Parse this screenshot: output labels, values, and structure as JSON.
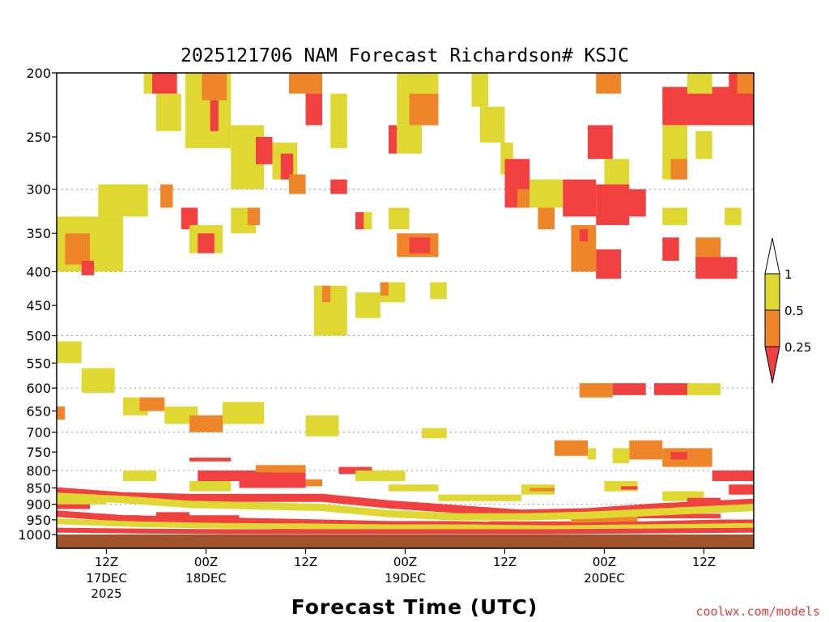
{
  "chart_data": {
    "type": "heatmap",
    "title": "2025121706 NAM Forecast Richardson# KSJC",
    "xlabel": "Forecast Time (UTC)",
    "ylabel": "",
    "credit": "coolwx.com/models",
    "x_range_hours": [
      0,
      84
    ],
    "y_scale": "pressure",
    "y_range_hpa": [
      1000,
      200
    ],
    "y_ticks": [
      200,
      250,
      300,
      350,
      400,
      450,
      500,
      550,
      600,
      650,
      700,
      750,
      800,
      850,
      900,
      950,
      1000
    ],
    "y_gridlines": [
      300,
      400,
      500,
      600,
      700,
      800,
      900
    ],
    "x_ticks": [
      {
        "hour": 6,
        "label": "12Z",
        "sub": [
          "17DEC",
          "2025"
        ]
      },
      {
        "hour": 18,
        "label": "00Z",
        "sub": [
          "18DEC"
        ]
      },
      {
        "hour": 30,
        "label": "12Z",
        "sub": []
      },
      {
        "hour": 42,
        "label": "00Z",
        "sub": [
          "19DEC"
        ]
      },
      {
        "hour": 54,
        "label": "12Z",
        "sub": []
      },
      {
        "hour": 66,
        "label": "00Z",
        "sub": [
          "20DEC"
        ]
      },
      {
        "hour": 78,
        "label": "12Z",
        "sub": []
      }
    ],
    "legend": {
      "levels": [
        "1",
        "0.5",
        "0.25"
      ],
      "colors": {
        "gt1": "#ffffff",
        "b05_1": "#e0d832",
        "b025_05": "#ee8528",
        "lt025": "#f04040"
      }
    },
    "ground_color": "#a0522d",
    "cells": [
      {
        "x0": 0,
        "x1": 8,
        "p0": 330,
        "p1": 400,
        "c": "b05_1"
      },
      {
        "x0": 5,
        "x1": 11,
        "p0": 295,
        "p1": 330,
        "c": "b05_1"
      },
      {
        "x0": 1,
        "x1": 4,
        "p0": 350,
        "p1": 390,
        "c": "b025_05"
      },
      {
        "x0": 3,
        "x1": 4.5,
        "p0": 385,
        "p1": 405,
        "c": "lt025"
      },
      {
        "x0": 10.5,
        "x1": 11.5,
        "p0": 200,
        "p1": 215,
        "c": "b05_1"
      },
      {
        "x0": 11.5,
        "x1": 14.5,
        "p0": 200,
        "p1": 215,
        "c": "lt025"
      },
      {
        "x0": 12,
        "x1": 15,
        "p0": 215,
        "p1": 245,
        "c": "b05_1"
      },
      {
        "x0": 15.5,
        "x1": 21,
        "p0": 200,
        "p1": 260,
        "c": "b05_1"
      },
      {
        "x0": 17.5,
        "x1": 20.5,
        "p0": 200,
        "p1": 220,
        "c": "b025_05"
      },
      {
        "x0": 18.5,
        "x1": 19.5,
        "p0": 220,
        "p1": 245,
        "c": "lt025"
      },
      {
        "x0": 21,
        "x1": 25,
        "p0": 240,
        "p1": 300,
        "c": "b05_1"
      },
      {
        "x0": 24,
        "x1": 26,
        "p0": 250,
        "p1": 275,
        "c": "lt025"
      },
      {
        "x0": 26,
        "x1": 29,
        "p0": 255,
        "p1": 290,
        "c": "b05_1"
      },
      {
        "x0": 27,
        "x1": 28.5,
        "p0": 265,
        "p1": 290,
        "c": "lt025"
      },
      {
        "x0": 12.5,
        "x1": 14,
        "p0": 295,
        "p1": 320,
        "c": "b025_05"
      },
      {
        "x0": 15,
        "x1": 17,
        "p0": 320,
        "p1": 345,
        "c": "lt025"
      },
      {
        "x0": 16,
        "x1": 20,
        "p0": 340,
        "p1": 375,
        "c": "b05_1"
      },
      {
        "x0": 17,
        "x1": 19,
        "p0": 350,
        "p1": 375,
        "c": "lt025"
      },
      {
        "x0": 21,
        "x1": 24,
        "p0": 320,
        "p1": 350,
        "c": "b05_1"
      },
      {
        "x0": 23,
        "x1": 24.5,
        "p0": 320,
        "p1": 340,
        "c": "b025_05"
      },
      {
        "x0": 28,
        "x1": 32,
        "p0": 200,
        "p1": 215,
        "c": "b025_05"
      },
      {
        "x0": 30,
        "x1": 32,
        "p0": 215,
        "p1": 240,
        "c": "lt025"
      },
      {
        "x0": 33,
        "x1": 35,
        "p0": 215,
        "p1": 260,
        "c": "b05_1"
      },
      {
        "x0": 28,
        "x1": 30,
        "p0": 285,
        "p1": 305,
        "c": "b025_05"
      },
      {
        "x0": 33,
        "x1": 35,
        "p0": 290,
        "p1": 305,
        "c": "lt025"
      },
      {
        "x0": 36,
        "x1": 38,
        "p0": 325,
        "p1": 345,
        "c": "b05_1"
      },
      {
        "x0": 36,
        "x1": 37,
        "p0": 325,
        "p1": 345,
        "c": "lt025"
      },
      {
        "x0": 40,
        "x1": 42.5,
        "p0": 320,
        "p1": 345,
        "c": "b05_1"
      },
      {
        "x0": 41,
        "x1": 46,
        "p0": 350,
        "p1": 380,
        "c": "b025_05"
      },
      {
        "x0": 42.5,
        "x1": 45,
        "p0": 355,
        "p1": 375,
        "c": "lt025"
      },
      {
        "x0": 41,
        "x1": 46,
        "p0": 200,
        "p1": 240,
        "c": "b05_1"
      },
      {
        "x0": 42.5,
        "x1": 46,
        "p0": 215,
        "p1": 240,
        "c": "b025_05"
      },
      {
        "x0": 40,
        "x1": 41,
        "p0": 240,
        "p1": 265,
        "c": "lt025"
      },
      {
        "x0": 41,
        "x1": 44,
        "p0": 240,
        "p1": 265,
        "c": "b05_1"
      },
      {
        "x0": 31,
        "x1": 35,
        "p0": 420,
        "p1": 500,
        "c": "b05_1"
      },
      {
        "x0": 32,
        "x1": 33,
        "p0": 420,
        "p1": 445,
        "c": "b025_05"
      },
      {
        "x0": 36,
        "x1": 39,
        "p0": 430,
        "p1": 470,
        "c": "b05_1"
      },
      {
        "x0": 39,
        "x1": 42,
        "p0": 415,
        "p1": 445,
        "c": "b05_1"
      },
      {
        "x0": 39,
        "x1": 40,
        "p0": 415,
        "p1": 435,
        "c": "b025_05"
      },
      {
        "x0": 45,
        "x1": 47,
        "p0": 415,
        "p1": 440,
        "c": "b05_1"
      },
      {
        "x0": 50,
        "x1": 52,
        "p0": 200,
        "p1": 225,
        "c": "b05_1"
      },
      {
        "x0": 51,
        "x1": 54,
        "p0": 225,
        "p1": 255,
        "c": "b05_1"
      },
      {
        "x0": 53.5,
        "x1": 55,
        "p0": 255,
        "p1": 285,
        "c": "b05_1"
      },
      {
        "x0": 54,
        "x1": 57,
        "p0": 270,
        "p1": 320,
        "c": "lt025"
      },
      {
        "x0": 55.5,
        "x1": 57,
        "p0": 300,
        "p1": 320,
        "c": "b025_05"
      },
      {
        "x0": 57,
        "x1": 61,
        "p0": 290,
        "p1": 320,
        "c": "b05_1"
      },
      {
        "x0": 58,
        "x1": 60,
        "p0": 320,
        "p1": 345,
        "c": "b025_05"
      },
      {
        "x0": 61,
        "x1": 65,
        "p0": 290,
        "p1": 330,
        "c": "lt025"
      },
      {
        "x0": 64,
        "x1": 67,
        "p0": 240,
        "p1": 270,
        "c": "lt025"
      },
      {
        "x0": 65,
        "x1": 68,
        "p0": 200,
        "p1": 215,
        "c": "b025_05"
      },
      {
        "x0": 66,
        "x1": 69,
        "p0": 270,
        "p1": 300,
        "c": "b05_1"
      },
      {
        "x0": 65,
        "x1": 69,
        "p0": 295,
        "p1": 340,
        "c": "lt025"
      },
      {
        "x0": 67,
        "x1": 71,
        "p0": 300,
        "p1": 330,
        "c": "lt025"
      },
      {
        "x0": 62,
        "x1": 65,
        "p0": 340,
        "p1": 400,
        "c": "b025_05"
      },
      {
        "x0": 65,
        "x1": 68,
        "p0": 370,
        "p1": 410,
        "c": "lt025"
      },
      {
        "x0": 63,
        "x1": 64,
        "p0": 345,
        "p1": 360,
        "c": "lt025"
      },
      {
        "x0": 73,
        "x1": 84,
        "p0": 210,
        "p1": 240,
        "c": "lt025"
      },
      {
        "x0": 73,
        "x1": 76,
        "p0": 240,
        "p1": 290,
        "c": "b05_1"
      },
      {
        "x0": 74,
        "x1": 76,
        "p0": 270,
        "p1": 290,
        "c": "b025_05"
      },
      {
        "x0": 76,
        "x1": 79,
        "p0": 200,
        "p1": 215,
        "c": "b05_1"
      },
      {
        "x0": 77,
        "x1": 79,
        "p0": 245,
        "p1": 270,
        "c": "b05_1"
      },
      {
        "x0": 81,
        "x1": 82,
        "p0": 200,
        "p1": 215,
        "c": "lt025"
      },
      {
        "x0": 82,
        "x1": 84,
        "p0": 200,
        "p1": 215,
        "c": "b025_05"
      },
      {
        "x0": 73,
        "x1": 75,
        "p0": 355,
        "p1": 385,
        "c": "lt025"
      },
      {
        "x0": 77,
        "x1": 80,
        "p0": 355,
        "p1": 400,
        "c": "b025_05"
      },
      {
        "x0": 77,
        "x1": 82,
        "p0": 380,
        "p1": 410,
        "c": "lt025"
      },
      {
        "x0": 73,
        "x1": 76,
        "p0": 320,
        "p1": 340,
        "c": "b05_1"
      },
      {
        "x0": 80.5,
        "x1": 82.5,
        "p0": 320,
        "p1": 340,
        "c": "b05_1"
      },
      {
        "x0": 0,
        "x1": 3,
        "p0": 510,
        "p1": 550,
        "c": "b05_1"
      },
      {
        "x0": 3,
        "x1": 7,
        "p0": 560,
        "p1": 610,
        "c": "b05_1"
      },
      {
        "x0": 8,
        "x1": 11,
        "p0": 620,
        "p1": 660,
        "c": "b05_1"
      },
      {
        "x0": 10,
        "x1": 13,
        "p0": 620,
        "p1": 650,
        "c": "b025_05"
      },
      {
        "x0": 13,
        "x1": 17,
        "p0": 640,
        "p1": 680,
        "c": "b05_1"
      },
      {
        "x0": 16,
        "x1": 20,
        "p0": 660,
        "p1": 700,
        "c": "b025_05"
      },
      {
        "x0": 20,
        "x1": 25,
        "p0": 630,
        "p1": 680,
        "c": "b05_1"
      },
      {
        "x0": 30,
        "x1": 34,
        "p0": 660,
        "p1": 710,
        "c": "b05_1"
      },
      {
        "x0": 44,
        "x1": 47,
        "p0": 690,
        "p1": 715,
        "c": "b05_1"
      },
      {
        "x0": 0,
        "x1": 1,
        "p0": 640,
        "p1": 670,
        "c": "b025_05"
      },
      {
        "x0": 63,
        "x1": 67,
        "p0": 590,
        "p1": 620,
        "c": "b025_05"
      },
      {
        "x0": 67,
        "x1": 71,
        "p0": 590,
        "p1": 615,
        "c": "lt025"
      },
      {
        "x0": 72,
        "x1": 76,
        "p0": 590,
        "p1": 615,
        "c": "lt025"
      },
      {
        "x0": 76,
        "x1": 80,
        "p0": 590,
        "p1": 615,
        "c": "b05_1"
      },
      {
        "x0": 60,
        "x1": 64,
        "p0": 720,
        "p1": 760,
        "c": "b025_05"
      },
      {
        "x0": 64,
        "x1": 65,
        "p0": 740,
        "p1": 770,
        "c": "b05_1"
      },
      {
        "x0": 69,
        "x1": 73,
        "p0": 720,
        "p1": 770,
        "c": "b025_05"
      },
      {
        "x0": 73,
        "x1": 79,
        "p0": 740,
        "p1": 790,
        "c": "b025_05"
      },
      {
        "x0": 74,
        "x1": 76,
        "p0": 750,
        "p1": 770,
        "c": "lt025"
      },
      {
        "x0": 67,
        "x1": 69,
        "p0": 740,
        "p1": 780,
        "c": "b05_1"
      },
      {
        "x0": 16,
        "x1": 21,
        "p0": 765,
        "p1": 775,
        "c": "lt025"
      },
      {
        "x0": 17,
        "x1": 26,
        "p0": 800,
        "p1": 830,
        "c": "lt025"
      },
      {
        "x0": 22,
        "x1": 30,
        "p0": 805,
        "p1": 850,
        "c": "lt025"
      },
      {
        "x0": 24,
        "x1": 30,
        "p0": 785,
        "p1": 805,
        "c": "b025_05"
      },
      {
        "x0": 30,
        "x1": 32,
        "p0": 825,
        "p1": 845,
        "c": "b025_05"
      },
      {
        "x0": 16,
        "x1": 21,
        "p0": 830,
        "p1": 860,
        "c": "b05_1"
      },
      {
        "x0": 0,
        "x1": 6,
        "p0": 865,
        "p1": 880,
        "c": "lt025"
      },
      {
        "x0": 0,
        "x1": 6,
        "p0": 880,
        "p1": 900,
        "c": "b05_1"
      },
      {
        "x0": 0,
        "x1": 4,
        "p0": 900,
        "p1": 915,
        "c": "lt025"
      },
      {
        "x0": 8,
        "x1": 12,
        "p0": 800,
        "p1": 830,
        "c": "b05_1"
      },
      {
        "x0": 12,
        "x1": 16,
        "p0": 925,
        "p1": 945,
        "c": "lt025"
      },
      {
        "x0": 16,
        "x1": 22,
        "p0": 935,
        "p1": 955,
        "c": "lt025"
      },
      {
        "x0": 6,
        "x1": 10,
        "p0": 935,
        "p1": 950,
        "c": "lt025"
      },
      {
        "x0": 10,
        "x1": 16,
        "p0": 950,
        "p1": 965,
        "c": "lt025"
      },
      {
        "x0": 34,
        "x1": 38,
        "p0": 790,
        "p1": 810,
        "c": "lt025"
      },
      {
        "x0": 36,
        "x1": 42,
        "p0": 800,
        "p1": 830,
        "c": "b05_1"
      },
      {
        "x0": 40,
        "x1": 46,
        "p0": 840,
        "p1": 860,
        "c": "b05_1"
      },
      {
        "x0": 46,
        "x1": 56,
        "p0": 870,
        "p1": 890,
        "c": "b05_1"
      },
      {
        "x0": 56,
        "x1": 60,
        "p0": 840,
        "p1": 870,
        "c": "b05_1"
      },
      {
        "x0": 57,
        "x1": 60,
        "p0": 850,
        "p1": 860,
        "c": "b025_05"
      },
      {
        "x0": 66,
        "x1": 70,
        "p0": 830,
        "p1": 860,
        "c": "b05_1"
      },
      {
        "x0": 68,
        "x1": 70,
        "p0": 845,
        "p1": 855,
        "c": "lt025"
      },
      {
        "x0": 73,
        "x1": 78,
        "p0": 860,
        "p1": 890,
        "c": "b05_1"
      },
      {
        "x0": 79,
        "x1": 84,
        "p0": 800,
        "p1": 830,
        "c": "lt025"
      },
      {
        "x0": 81,
        "x1": 84,
        "p0": 840,
        "p1": 870,
        "c": "lt025"
      },
      {
        "x0": 76,
        "x1": 80,
        "p0": 880,
        "p1": 900,
        "c": "lt025"
      },
      {
        "x0": 70,
        "x1": 74,
        "p0": 900,
        "p1": 920,
        "c": "b05_1"
      },
      {
        "x0": 62,
        "x1": 70,
        "p0": 940,
        "p1": 960,
        "c": "b025_05"
      },
      {
        "x0": 66,
        "x1": 76,
        "p0": 960,
        "p1": 980,
        "c": "lt025"
      },
      {
        "x0": 76,
        "x1": 84,
        "p0": 965,
        "p1": 980,
        "c": "lt025"
      },
      {
        "x0": 40,
        "x1": 48,
        "p0": 975,
        "p1": 985,
        "c": "lt025"
      },
      {
        "x0": 26,
        "x1": 36,
        "p0": 970,
        "p1": 985,
        "c": "lt025"
      },
      {
        "x0": 52,
        "x1": 62,
        "p0": 955,
        "p1": 965,
        "c": "lt025"
      },
      {
        "x0": 70,
        "x1": 80,
        "p0": 930,
        "p1": 945,
        "c": "lt025"
      }
    ],
    "bands": [
      {
        "x": [
          0,
          8,
          16,
          24,
          32,
          40,
          48,
          56,
          64,
          72,
          80,
          84
        ],
        "p": [
          860,
          875,
          880,
          880,
          880,
          900,
          915,
          930,
          925,
          910,
          900,
          895
        ],
        "h": 10,
        "c": "lt025"
      },
      {
        "x": [
          0,
          8,
          16,
          24,
          32,
          40,
          48,
          56,
          64,
          72,
          80,
          84
        ],
        "p": [
          875,
          885,
          900,
          905,
          910,
          930,
          940,
          940,
          935,
          925,
          915,
          910
        ],
        "h": 9,
        "c": "b05_1"
      },
      {
        "x": [
          0,
          8,
          16,
          24,
          32,
          40,
          48,
          56,
          64,
          72,
          80,
          84
        ],
        "p": [
          930,
          945,
          950,
          955,
          960,
          965,
          965,
          970,
          970,
          965,
          960,
          960
        ],
        "h": 8,
        "c": "lt025"
      },
      {
        "x": [
          0,
          10,
          20,
          30,
          40,
          50,
          60,
          70,
          80,
          84
        ],
        "p": [
          955,
          965,
          970,
          972,
          975,
          975,
          978,
          975,
          972,
          970
        ],
        "h": 7,
        "c": "b05_1"
      },
      {
        "x": [
          0,
          10,
          20,
          30,
          40,
          50,
          60,
          70,
          80,
          84
        ],
        "p": [
          985,
          988,
          990,
          990,
          990,
          990,
          990,
          988,
          986,
          985
        ],
        "h": 6,
        "c": "lt025"
      }
    ]
  }
}
